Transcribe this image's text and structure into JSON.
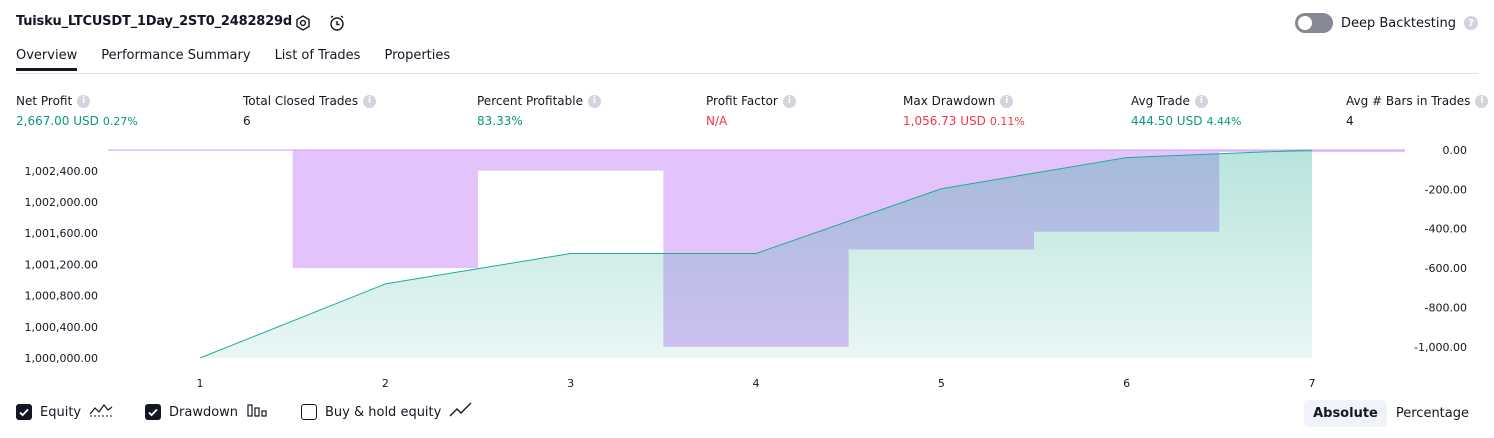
{
  "header": {
    "title": "Tuisku_LTCUSDT_1Day_2ST0_2482829d",
    "deep_backtesting_label": "Deep Backtesting",
    "help_glyph": "?"
  },
  "tabs": [
    {
      "label": "Overview",
      "active": true
    },
    {
      "label": "Performance Summary",
      "active": false
    },
    {
      "label": "List of Trades",
      "active": false
    },
    {
      "label": "Properties",
      "active": false
    }
  ],
  "stats": {
    "info_glyph": "i",
    "net_profit": {
      "label": "Net Profit",
      "value": "2,667.00 USD",
      "pct": "0.27%",
      "color": "#089981"
    },
    "total_closed_trades": {
      "label": "Total Closed Trades",
      "value": "6",
      "color": "#131722"
    },
    "percent_profitable": {
      "label": "Percent Profitable",
      "value": "83.33%",
      "color": "#089981"
    },
    "profit_factor": {
      "label": "Profit Factor",
      "value": "N/A",
      "color": "#f23645"
    },
    "max_drawdown": {
      "label": "Max Drawdown",
      "value": "1,056.73 USD",
      "pct": "0.11%",
      "color": "#f23645"
    },
    "avg_trade": {
      "label": "Avg Trade",
      "value": "444.50 USD",
      "pct": "4.44%",
      "color": "#089981"
    },
    "avg_bars": {
      "label": "Avg # Bars in Trades",
      "value": "4",
      "color": "#131722"
    }
  },
  "chart_data": {
    "type": "area",
    "x": [
      1,
      2,
      3,
      4,
      5,
      6,
      7
    ],
    "x_tick_labels": [
      "1",
      "2",
      "3",
      "4",
      "5",
      "6",
      "7"
    ],
    "y_left_tick_labels": [
      "1,002,400.00",
      "1,002,000.00",
      "1,001,600.00",
      "1,001,200.00",
      "1,000,800.00",
      "1,000,400.00",
      "1,000,000.00"
    ],
    "y_left_ticks": [
      1002400,
      1002000,
      1001600,
      1001200,
      1000800,
      1000400,
      1000000
    ],
    "y_left_range": [
      1000000,
      1002667
    ],
    "y_right_tick_labels": [
      "0.00",
      "-200.00",
      "-400.00",
      "-600.00",
      "-800.00",
      "-1,000.00"
    ],
    "y_right_ticks": [
      0,
      -200,
      -400,
      -600,
      -800,
      -1000
    ],
    "y_right_range": [
      -1056.73,
      0
    ],
    "equity": {
      "name": "Equity",
      "values": [
        1000000,
        1000950,
        1001340,
        1001340,
        1002170,
        1002570,
        1002667
      ],
      "color": "#22ab94"
    },
    "drawdown": {
      "name": "Drawdown",
      "x": [
        2,
        3,
        4,
        5,
        6,
        7
      ],
      "values": [
        -600,
        -105,
        -1000,
        -505,
        -415,
        -10
      ],
      "color": "#cf9bfa"
    },
    "buy_hold": {
      "name": "Buy & hold equity",
      "visible": false
    }
  },
  "legend": {
    "equity_label": "Equity",
    "drawdown_label": "Drawdown",
    "buyhold_label": "Buy & hold equity",
    "equity_checked": true,
    "drawdown_checked": true,
    "buyhold_checked": false
  },
  "view_toggle": {
    "absolute": "Absolute",
    "percentage": "Percentage",
    "selected": "Absolute"
  }
}
